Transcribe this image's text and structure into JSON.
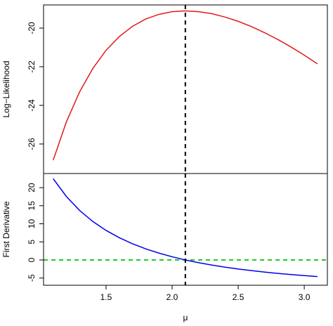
{
  "chart_data": [
    {
      "type": "line",
      "ylabel": "Log−Likelihood",
      "x": [
        1.1,
        1.2,
        1.3,
        1.4,
        1.5,
        1.6,
        1.7,
        1.8,
        1.9,
        2.0,
        2.1,
        2.2,
        2.3,
        2.4,
        2.5,
        2.6,
        2.7,
        2.8,
        2.9,
        3.0,
        3.1
      ],
      "series": [
        {
          "color": "#e41a1c",
          "values": [
            -26.84,
            -24.85,
            -23.3,
            -22.09,
            -21.15,
            -20.44,
            -19.91,
            -19.53,
            -19.29,
            -19.15,
            -19.11,
            -19.15,
            -19.25,
            -19.43,
            -19.65,
            -19.92,
            -20.24,
            -20.59,
            -20.98,
            -21.4,
            -21.85
          ]
        }
      ],
      "xlim": [
        1.027,
        3.175
      ],
      "ylim": [
        -27.53,
        -18.8
      ],
      "yticks": [
        -26,
        -24,
        -22,
        -20
      ],
      "vline": {
        "x": 2.1,
        "color": "#000000"
      }
    },
    {
      "type": "line",
      "ylabel": "First Derivative",
      "xlabel": "μ",
      "x": [
        1.1,
        1.2,
        1.3,
        1.4,
        1.5,
        1.6,
        1.7,
        1.8,
        1.9,
        2.0,
        2.1,
        2.2,
        2.3,
        2.4,
        2.5,
        2.6,
        2.7,
        2.8,
        2.9,
        3.0,
        3.1
      ],
      "series": [
        {
          "color": "#0000ee",
          "values": [
            22.49,
            17.54,
            13.69,
            10.63,
            8.17,
            6.15,
            4.48,
            3.07,
            1.89,
            0.88,
            0.0,
            -0.75,
            -1.41,
            -1.99,
            -2.5,
            -2.95,
            -3.36,
            -3.72,
            -4.04,
            -4.33,
            -4.6
          ]
        }
      ],
      "xlim": [
        1.027,
        3.175
      ],
      "ylim": [
        -7.0,
        23.9
      ],
      "yticks": [
        -5,
        0,
        5,
        10,
        15,
        20
      ],
      "xticks": [
        1.5,
        {
          "value": 2,
          "label": "2.0"
        },
        2.5,
        {
          "value": 3,
          "label": "3.0"
        }
      ],
      "vline": {
        "x": 2.1,
        "color": "#000000"
      },
      "hline": {
        "y": 0,
        "color": "#22cc22"
      }
    }
  ]
}
